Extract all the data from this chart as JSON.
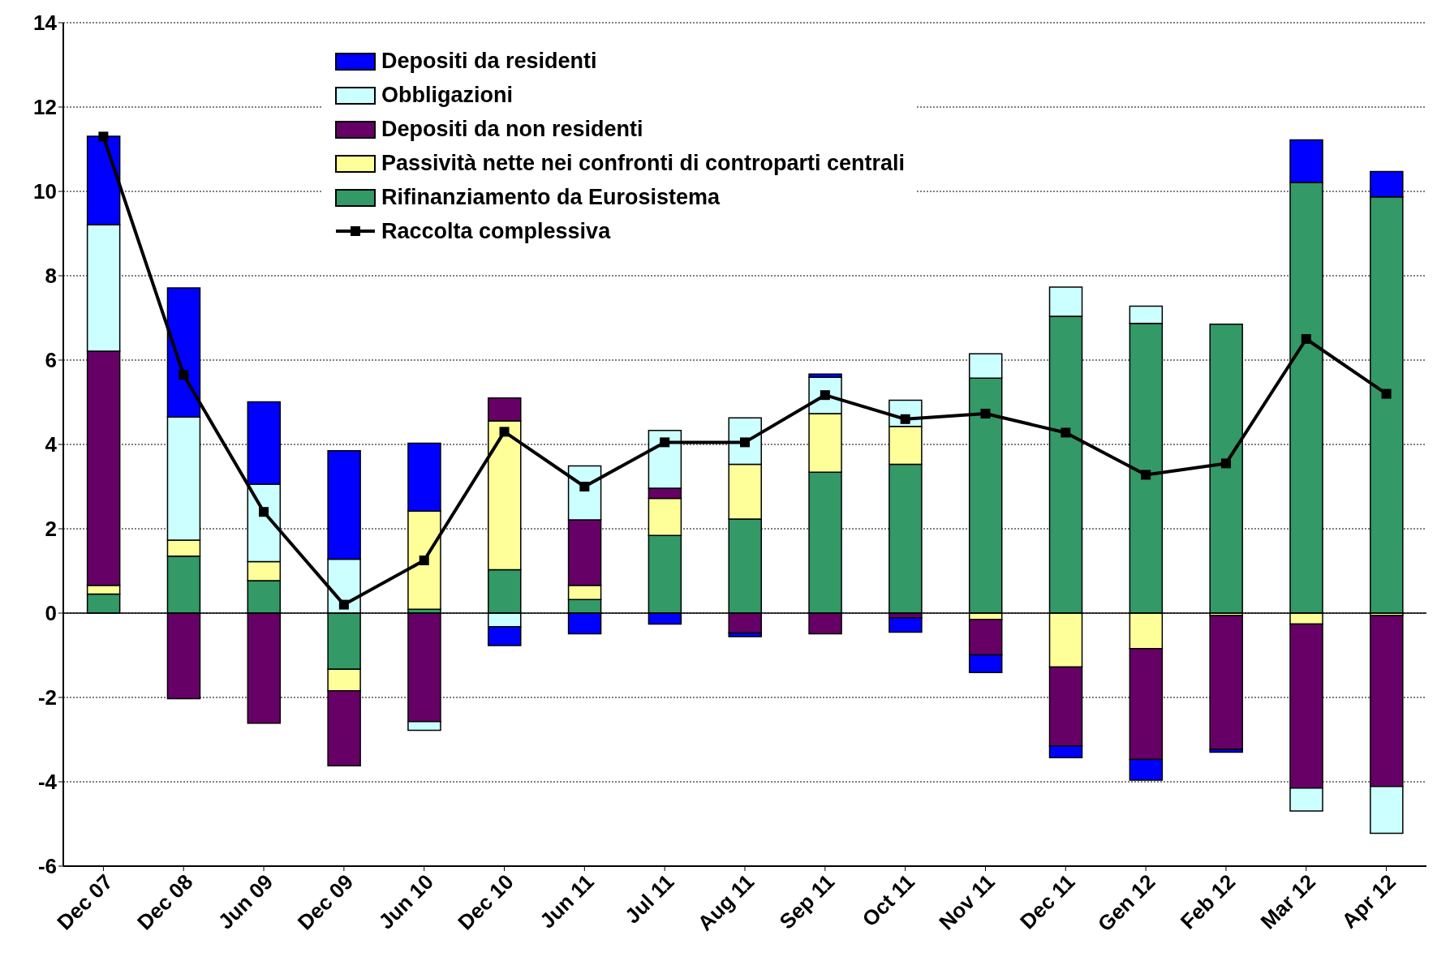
{
  "chart_data": {
    "type": "bar",
    "stacked": true,
    "categories": [
      "Dec 07",
      "Dec 08",
      "Jun 09",
      "Dec 09",
      "Jun 10",
      "Dec 10",
      "Jun 11",
      "Jul 11",
      "Aug 11",
      "Sep 11",
      "Oct 11",
      "Nov 11",
      "Dec 11",
      "Gen 12",
      "Feb 12",
      "Mar 12",
      "Apr 12"
    ],
    "series": [
      {
        "name": "Rifinanziamento da Eurosistema",
        "color": "#339966",
        "values": [
          0.45,
          1.35,
          0.77,
          -1.33,
          0.09,
          1.03,
          0.32,
          1.84,
          2.23,
          3.34,
          3.53,
          5.57,
          7.04,
          6.87,
          6.85,
          10.21,
          9.87
        ]
      },
      {
        "name": "Passività nette nei confronti di controparti centrali",
        "color": "#ffff99",
        "values": [
          0.21,
          0.38,
          0.45,
          -0.51,
          2.33,
          3.53,
          0.34,
          0.88,
          1.3,
          1.39,
          0.9,
          -0.15,
          -1.28,
          -0.84,
          -0.06,
          -0.26,
          -0.06
        ]
      },
      {
        "name": "Depositi da non residenti",
        "color": "#660066",
        "values": [
          5.55,
          -2.03,
          -2.61,
          -1.78,
          -2.57,
          0.54,
          1.55,
          0.24,
          -0.47,
          -0.49,
          -0.11,
          -0.84,
          -1.87,
          -2.63,
          -3.17,
          -3.89,
          -4.05
        ]
      },
      {
        "name": "Obbligazioni",
        "color": "#ccffff",
        "values": [
          3.0,
          2.92,
          1.84,
          1.28,
          -0.21,
          -0.32,
          1.28,
          1.37,
          1.1,
          0.86,
          0.62,
          0.58,
          0.69,
          0.41,
          null,
          -0.54,
          -1.11
        ]
      },
      {
        "name": "Depositi da residenti",
        "color": "#0000ff",
        "values": [
          2.1,
          3.06,
          1.95,
          2.57,
          1.61,
          -0.45,
          -0.49,
          -0.26,
          -0.09,
          0.08,
          -0.34,
          -0.42,
          -0.28,
          -0.49,
          -0.07,
          1.01,
          0.6
        ]
      },
      {
        "name": "Raccolta complessiva",
        "type": "line",
        "color": "#000000",
        "marker": "square",
        "values": [
          11.3,
          5.65,
          2.4,
          0.2,
          1.25,
          4.3,
          3.0,
          4.05,
          4.05,
          5.17,
          4.6,
          4.73,
          4.28,
          3.28,
          3.55,
          6.5,
          5.2
        ]
      }
    ],
    "ylim": [
      -6,
      14
    ],
    "yticks": [
      -6,
      -4,
      -2,
      0,
      2,
      4,
      6,
      8,
      10,
      12,
      14
    ],
    "grid": "y",
    "legend": "top"
  }
}
